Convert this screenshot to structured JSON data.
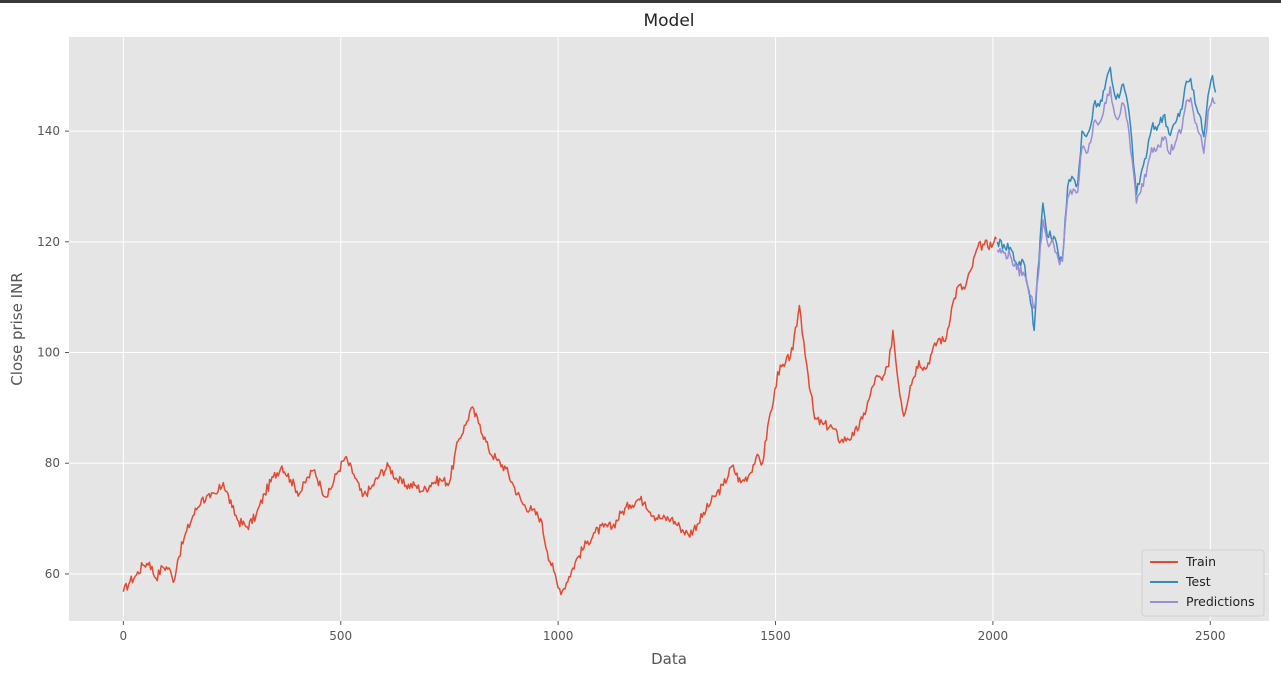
{
  "chart_data": {
    "type": "line",
    "title": "Model",
    "xlabel": "Data",
    "ylabel": "Close prise INR",
    "xlim": [
      -125,
      2635
    ],
    "ylim": [
      51.5,
      157
    ],
    "x_ticks": [
      0,
      500,
      1000,
      1500,
      2000,
      2500
    ],
    "y_ticks": [
      60,
      80,
      100,
      120,
      140
    ],
    "grid": true,
    "legend_position": "bottom-right",
    "series": [
      {
        "name": "Train",
        "color": "#E24A33",
        "points": [
          [
            0,
            56.8
          ],
          [
            15,
            58.6
          ],
          [
            30,
            59.8
          ],
          [
            45,
            61.6
          ],
          [
            60,
            62.1
          ],
          [
            75,
            59.2
          ],
          [
            90,
            61.3
          ],
          [
            105,
            61.1
          ],
          [
            115,
            58.5
          ],
          [
            125,
            62.5
          ],
          [
            140,
            66.5
          ],
          [
            160,
            70.5
          ],
          [
            180,
            73.5
          ],
          [
            200,
            73.8
          ],
          [
            215,
            74.5
          ],
          [
            230,
            76.5
          ],
          [
            250,
            72.0
          ],
          [
            265,
            69.5
          ],
          [
            285,
            68.5
          ],
          [
            305,
            70.5
          ],
          [
            325,
            74.5
          ],
          [
            345,
            77.5
          ],
          [
            365,
            79.5
          ],
          [
            385,
            77.0
          ],
          [
            405,
            74.5
          ],
          [
            425,
            77.5
          ],
          [
            440,
            78.8
          ],
          [
            455,
            75.5
          ],
          [
            470,
            74.0
          ],
          [
            490,
            78.0
          ],
          [
            510,
            81.0
          ],
          [
            530,
            78.0
          ],
          [
            550,
            74.0
          ],
          [
            570,
            75.5
          ],
          [
            590,
            78.0
          ],
          [
            610,
            79.5
          ],
          [
            630,
            77.0
          ],
          [
            650,
            76.0
          ],
          [
            670,
            76.0
          ],
          [
            690,
            75.0
          ],
          [
            710,
            76.5
          ],
          [
            730,
            77.0
          ],
          [
            750,
            76.5
          ],
          [
            770,
            84.0
          ],
          [
            790,
            87.5
          ],
          [
            800,
            90.0
          ],
          [
            820,
            87.0
          ],
          [
            840,
            82.5
          ],
          [
            860,
            80.5
          ],
          [
            880,
            79.0
          ],
          [
            900,
            75.5
          ],
          [
            920,
            72.5
          ],
          [
            940,
            71.5
          ],
          [
            960,
            70.0
          ],
          [
            975,
            64.0
          ],
          [
            990,
            60.5
          ],
          [
            1000,
            57.5
          ],
          [
            1010,
            57.0
          ],
          [
            1025,
            59.5
          ],
          [
            1045,
            63.0
          ],
          [
            1065,
            65.5
          ],
          [
            1085,
            67.5
          ],
          [
            1105,
            68.5
          ],
          [
            1125,
            68.5
          ],
          [
            1145,
            71.0
          ],
          [
            1165,
            72.5
          ],
          [
            1185,
            73.5
          ],
          [
            1200,
            73.0
          ],
          [
            1220,
            70.5
          ],
          [
            1240,
            70.0
          ],
          [
            1260,
            70.0
          ],
          [
            1280,
            68.5
          ],
          [
            1300,
            67.0
          ],
          [
            1320,
            69.0
          ],
          [
            1340,
            71.5
          ],
          [
            1360,
            74.0
          ],
          [
            1380,
            76.0
          ],
          [
            1400,
            79.5
          ],
          [
            1420,
            76.5
          ],
          [
            1440,
            78.0
          ],
          [
            1455,
            81.0
          ],
          [
            1470,
            80.0
          ],
          [
            1485,
            88.0
          ],
          [
            1495,
            91.0
          ],
          [
            1505,
            96.5
          ],
          [
            1520,
            97.5
          ],
          [
            1540,
            100.5
          ],
          [
            1555,
            108.5
          ],
          [
            1565,
            102.0
          ],
          [
            1575,
            96.0
          ],
          [
            1590,
            88.0
          ],
          [
            1610,
            87.0
          ],
          [
            1630,
            86.5
          ],
          [
            1650,
            84.0
          ],
          [
            1665,
            84.5
          ],
          [
            1680,
            85.0
          ],
          [
            1700,
            88.0
          ],
          [
            1715,
            91.5
          ],
          [
            1730,
            95.5
          ],
          [
            1745,
            95.0
          ],
          [
            1760,
            97.5
          ],
          [
            1770,
            104.0
          ],
          [
            1780,
            96.0
          ],
          [
            1795,
            88.5
          ],
          [
            1810,
            94.0
          ],
          [
            1830,
            98.5
          ],
          [
            1845,
            97.0
          ],
          [
            1860,
            100.0
          ],
          [
            1875,
            102.5
          ],
          [
            1890,
            102.0
          ],
          [
            1905,
            108.0
          ],
          [
            1920,
            112.0
          ],
          [
            1935,
            111.5
          ],
          [
            1950,
            115.0
          ],
          [
            1965,
            119.0
          ],
          [
            1980,
            119.5
          ],
          [
            2000,
            119.5
          ],
          [
            2008,
            120.5
          ]
        ]
      },
      {
        "name": "Test",
        "color": "#348ABD",
        "points": [
          [
            2010,
            120.0
          ],
          [
            2025,
            119.5
          ],
          [
            2040,
            119.0
          ],
          [
            2055,
            116.0
          ],
          [
            2070,
            116.5
          ],
          [
            2080,
            112.0
          ],
          [
            2090,
            108.0
          ],
          [
            2095,
            104.0
          ],
          [
            2103,
            114.5
          ],
          [
            2115,
            127.0
          ],
          [
            2125,
            121.0
          ],
          [
            2140,
            121.0
          ],
          [
            2150,
            118.0
          ],
          [
            2160,
            117.0
          ],
          [
            2172,
            130.0
          ],
          [
            2185,
            131.5
          ],
          [
            2195,
            130.5
          ],
          [
            2205,
            140.0
          ],
          [
            2215,
            139.0
          ],
          [
            2225,
            141.0
          ],
          [
            2235,
            145.5
          ],
          [
            2245,
            144.5
          ],
          [
            2260,
            149.0
          ],
          [
            2270,
            151.5
          ],
          [
            2280,
            146.5
          ],
          [
            2290,
            146.0
          ],
          [
            2300,
            148.5
          ],
          [
            2310,
            145.0
          ],
          [
            2320,
            138.0
          ],
          [
            2330,
            128.5
          ],
          [
            2340,
            132.0
          ],
          [
            2355,
            136.5
          ],
          [
            2365,
            140.5
          ],
          [
            2380,
            141.0
          ],
          [
            2395,
            143.0
          ],
          [
            2405,
            139.5
          ],
          [
            2420,
            141.5
          ],
          [
            2435,
            144.0
          ],
          [
            2445,
            149.0
          ],
          [
            2455,
            149.5
          ],
          [
            2465,
            145.0
          ],
          [
            2475,
            143.0
          ],
          [
            2485,
            139.0
          ],
          [
            2495,
            146.5
          ],
          [
            2505,
            150.0
          ],
          [
            2512,
            147.0
          ]
        ]
      },
      {
        "name": "Predictions",
        "color": "#988ED5",
        "points": [
          [
            2010,
            118.5
          ],
          [
            2025,
            118.0
          ],
          [
            2040,
            117.5
          ],
          [
            2055,
            115.0
          ],
          [
            2070,
            114.5
          ],
          [
            2080,
            112.0
          ],
          [
            2090,
            110.0
          ],
          [
            2095,
            108.0
          ],
          [
            2103,
            113.0
          ],
          [
            2115,
            124.0
          ],
          [
            2125,
            120.0
          ],
          [
            2140,
            119.5
          ],
          [
            2150,
            117.0
          ],
          [
            2160,
            116.5
          ],
          [
            2172,
            128.0
          ],
          [
            2185,
            129.5
          ],
          [
            2195,
            129.0
          ],
          [
            2205,
            137.0
          ],
          [
            2215,
            136.0
          ],
          [
            2225,
            138.0
          ],
          [
            2235,
            142.0
          ],
          [
            2245,
            141.5
          ],
          [
            2260,
            145.0
          ],
          [
            2270,
            148.0
          ],
          [
            2280,
            143.0
          ],
          [
            2290,
            142.5
          ],
          [
            2300,
            145.0
          ],
          [
            2310,
            141.5
          ],
          [
            2320,
            135.0
          ],
          [
            2330,
            127.0
          ],
          [
            2340,
            129.0
          ],
          [
            2355,
            133.5
          ],
          [
            2365,
            137.0
          ],
          [
            2380,
            137.5
          ],
          [
            2395,
            139.0
          ],
          [
            2405,
            136.0
          ],
          [
            2420,
            138.0
          ],
          [
            2435,
            140.5
          ],
          [
            2445,
            145.5
          ],
          [
            2455,
            146.0
          ],
          [
            2465,
            141.5
          ],
          [
            2475,
            139.5
          ],
          [
            2485,
            136.0
          ],
          [
            2495,
            143.5
          ],
          [
            2505,
            146.0
          ],
          [
            2512,
            145.0
          ]
        ]
      }
    ]
  }
}
